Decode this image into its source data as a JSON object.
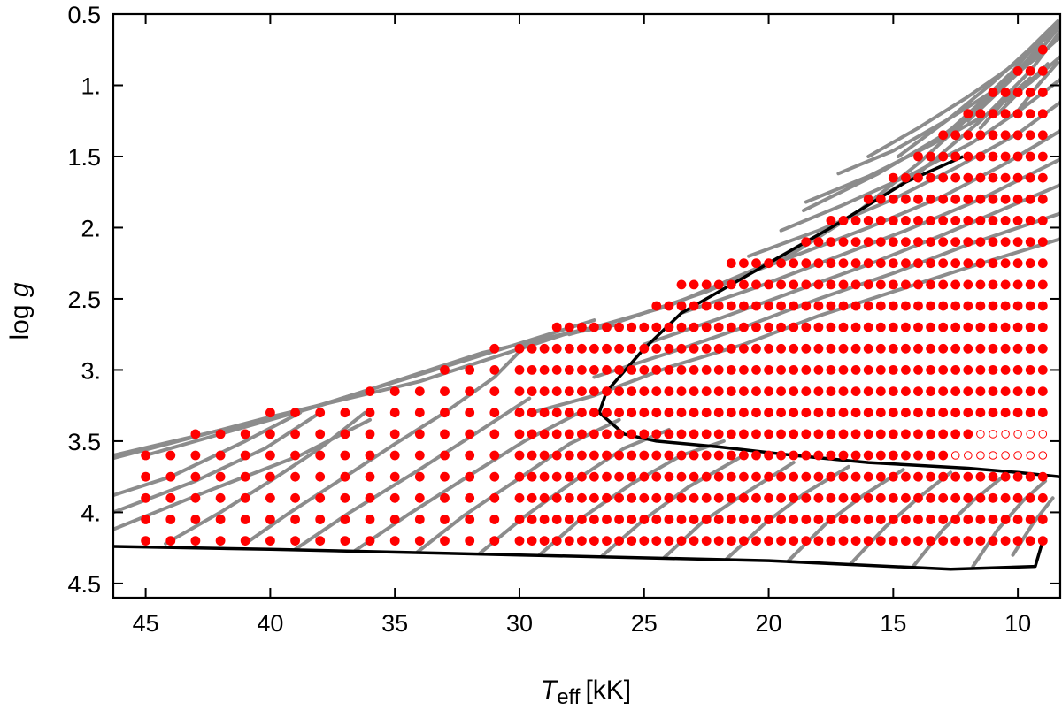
{
  "chart_data": {
    "type": "scatter",
    "title": "",
    "xlabel": {
      "symbol": "T",
      "subscript": "eff",
      "unit": "[kK]"
    },
    "ylabel": {
      "text": "log ",
      "symbol": "g"
    },
    "xlim": [
      46.3,
      8.3
    ],
    "ylim": [
      4.6,
      0.5
    ],
    "xticks": [
      45,
      40,
      35,
      30,
      25,
      20,
      15,
      10
    ],
    "xtick_labels": [
      "45",
      "40",
      "35",
      "30",
      "25",
      "20",
      "15",
      "10"
    ],
    "yticks": [
      0.5,
      1.0,
      1.5,
      2.0,
      2.5,
      3.0,
      3.5,
      4.0,
      4.5
    ],
    "ytick_labels": [
      "0.5",
      "1.",
      "1.5",
      "2.",
      "2.5",
      "3.",
      "3.5",
      "4.",
      "4.5"
    ],
    "grid": false,
    "colors": {
      "grid_point": "#ff0000",
      "track": "#8c8c8c",
      "boundary": "#000000",
      "axis": "#000000"
    },
    "grid_rows": [
      {
        "logg": 0.75,
        "t_max": 9.0,
        "t_min": 9.0,
        "step": 0.5
      },
      {
        "logg": 0.9,
        "t_max": 10.0,
        "t_min": 9.0,
        "step": 0.5
      },
      {
        "logg": 1.05,
        "t_max": 11.0,
        "t_min": 9.0,
        "step": 0.5
      },
      {
        "logg": 1.2,
        "t_max": 12.0,
        "t_min": 9.0,
        "step": 0.5
      },
      {
        "logg": 1.35,
        "t_max": 13.0,
        "t_min": 9.0,
        "step": 0.5
      },
      {
        "logg": 1.5,
        "t_max": 14.0,
        "t_min": 9.0,
        "step": 0.5
      },
      {
        "logg": 1.65,
        "t_max": 15.0,
        "t_min": 9.0,
        "step": 0.5
      },
      {
        "logg": 1.8,
        "t_max": 16.0,
        "t_min": 9.0,
        "step": 0.5
      },
      {
        "logg": 1.95,
        "t_max": 17.5,
        "t_min": 9.0,
        "step": 0.5
      },
      {
        "logg": 2.1,
        "t_max": 18.5,
        "t_min": 9.0,
        "step": 0.5
      },
      {
        "logg": 2.25,
        "t_max": 21.5,
        "t_min": 9.0,
        "step": 0.5
      },
      {
        "logg": 2.4,
        "t_max": 23.5,
        "t_min": 9.0,
        "step": 0.5
      },
      {
        "logg": 2.55,
        "t_max": 24.5,
        "t_min": 9.0,
        "step": 0.5
      },
      {
        "logg": 2.7,
        "t_max": 28.5,
        "t_min": 9.0,
        "step": 0.5
      },
      {
        "logg": 2.85,
        "t_max": 31.0,
        "t_min": 9.0,
        "step_hot": 1.0,
        "step": 0.5
      },
      {
        "logg": 3.0,
        "t_max": 33.0,
        "t_min": 9.0,
        "step_hot": 1.0,
        "step": 0.5
      },
      {
        "logg": 3.15,
        "t_max": 36.0,
        "t_min": 9.0,
        "step_hot": 1.0,
        "step": 0.5
      },
      {
        "logg": 3.3,
        "t_max": 40.0,
        "t_min": 9.0,
        "step_hot": 1.0,
        "step": 0.5
      },
      {
        "logg": 3.45,
        "t_max": 43.0,
        "t_min": 9.0,
        "step_hot": 1.0,
        "step": 0.5,
        "open_below": 11.5
      },
      {
        "logg": 3.6,
        "t_max": 45.0,
        "t_min": 9.0,
        "step_hot": 1.0,
        "step": 0.5,
        "open_below": 12.5
      },
      {
        "logg": 3.75,
        "t_max": 45.0,
        "t_min": 9.0,
        "step_hot": 1.0,
        "step": 0.5
      },
      {
        "logg": 3.9,
        "t_max": 45.0,
        "t_min": 9.0,
        "step_hot": 1.0,
        "step": 0.5
      },
      {
        "logg": 4.05,
        "t_max": 45.0,
        "t_min": 9.0,
        "step_hot": 1.0,
        "step": 0.5
      },
      {
        "logg": 4.2,
        "t_max": 45.0,
        "t_min": 9.0,
        "step_hot": 1.0,
        "step": 0.5
      }
    ],
    "hot_step_threshold": 30,
    "zams": [
      [
        46.3,
        4.24
      ],
      [
        40,
        4.26
      ],
      [
        30,
        4.3
      ],
      [
        20,
        4.34
      ],
      [
        12.7,
        4.4
      ],
      [
        9.3,
        4.38
      ],
      [
        9.0,
        4.2
      ]
    ],
    "tams": [
      [
        12.2,
        1.5
      ],
      [
        14.5,
        1.68
      ],
      [
        17.5,
        2.0
      ],
      [
        19.5,
        2.2
      ],
      [
        21.5,
        2.4
      ],
      [
        23.5,
        2.6
      ],
      [
        25.0,
        2.85
      ],
      [
        26.5,
        3.15
      ],
      [
        26.8,
        3.3
      ],
      [
        25.8,
        3.45
      ],
      [
        24.5,
        3.5
      ],
      [
        22.0,
        3.54
      ],
      [
        19.0,
        3.6
      ],
      [
        16.0,
        3.65
      ],
      [
        12.0,
        3.69
      ],
      [
        10.0,
        3.72
      ],
      [
        8.3,
        3.75
      ]
    ],
    "tracks": [
      [
        [
          46.3,
          4.12
        ],
        [
          42.5,
          3.85
        ],
        [
          38.8,
          3.6
        ],
        [
          36.0,
          3.35
        ]
      ],
      [
        [
          46.3,
          4.0
        ],
        [
          43.0,
          3.78
        ],
        [
          40.2,
          3.55
        ],
        [
          38.0,
          3.3
        ]
      ],
      [
        [
          46.3,
          3.88
        ],
        [
          44.0,
          3.75
        ],
        [
          41.0,
          3.5
        ],
        [
          38.8,
          3.3
        ]
      ],
      [
        [
          46.3,
          3.62
        ],
        [
          40.0,
          3.33
        ],
        [
          34.0,
          3.08
        ],
        [
          28.2,
          2.75
        ],
        [
          26.0,
          2.68
        ]
      ],
      [
        [
          46.3,
          3.6
        ],
        [
          39.0,
          3.3
        ],
        [
          32.5,
          2.95
        ],
        [
          27.0,
          2.65
        ]
      ],
      [
        [
          45.0,
          3.6
        ],
        [
          38.0,
          3.25
        ],
        [
          31.5,
          2.88
        ],
        [
          27.0,
          2.7
        ]
      ],
      [
        [
          44.2,
          4.22
        ],
        [
          42.0,
          4.0
        ],
        [
          40.0,
          3.78
        ],
        [
          38.0,
          3.55
        ],
        [
          36.2,
          3.3
        ]
      ],
      [
        [
          41.0,
          4.22
        ],
        [
          39.2,
          4.0
        ],
        [
          37.0,
          3.75
        ],
        [
          35.0,
          3.52
        ],
        [
          33.0,
          3.3
        ],
        [
          31.0,
          3.05
        ],
        [
          29.6,
          2.8
        ]
      ],
      [
        [
          39.0,
          4.26
        ],
        [
          36.8,
          4.0
        ],
        [
          34.2,
          3.72
        ],
        [
          31.8,
          3.45
        ],
        [
          29.6,
          3.2
        ]
      ],
      [
        [
          36.6,
          4.27
        ],
        [
          34.5,
          4.02
        ],
        [
          32.0,
          3.74
        ],
        [
          29.8,
          3.5
        ],
        [
          27.6,
          3.3
        ]
      ],
      [
        [
          34.1,
          4.28
        ],
        [
          32.2,
          4.02
        ],
        [
          30.0,
          3.76
        ],
        [
          28.0,
          3.52
        ],
        [
          26.0,
          3.35
        ]
      ],
      [
        [
          31.6,
          4.29
        ],
        [
          29.8,
          4.03
        ],
        [
          27.8,
          3.78
        ],
        [
          25.8,
          3.55
        ],
        [
          24.0,
          3.42
        ]
      ],
      [
        [
          29.2,
          4.3
        ],
        [
          27.5,
          4.04
        ],
        [
          25.5,
          3.8
        ],
        [
          23.5,
          3.6
        ],
        [
          21.8,
          3.5
        ]
      ],
      [
        [
          26.7,
          4.31
        ],
        [
          25.0,
          4.05
        ],
        [
          23.2,
          3.82
        ],
        [
          21.2,
          3.62
        ]
      ],
      [
        [
          24.2,
          4.32
        ],
        [
          22.6,
          4.06
        ],
        [
          20.8,
          3.85
        ],
        [
          19.0,
          3.65
        ]
      ],
      [
        [
          21.7,
          4.33
        ],
        [
          20.1,
          4.07
        ],
        [
          18.5,
          3.86
        ],
        [
          16.8,
          3.68
        ]
      ],
      [
        [
          19.2,
          4.34
        ],
        [
          17.7,
          4.08
        ],
        [
          16.2,
          3.88
        ],
        [
          14.6,
          3.7
        ]
      ],
      [
        [
          16.7,
          4.36
        ],
        [
          15.3,
          4.1
        ],
        [
          14.0,
          3.9
        ],
        [
          12.7,
          3.72
        ]
      ],
      [
        [
          14.2,
          4.38
        ],
        [
          13.0,
          4.12
        ],
        [
          11.8,
          3.92
        ],
        [
          10.6,
          3.75
        ]
      ],
      [
        [
          11.8,
          4.38
        ],
        [
          10.8,
          4.12
        ],
        [
          9.8,
          3.92
        ],
        [
          8.9,
          3.78
        ]
      ],
      [
        [
          10.2,
          4.3
        ],
        [
          9.4,
          4.08
        ],
        [
          8.6,
          3.9
        ]
      ],
      [
        [
          29.5,
          3.3
        ],
        [
          27.0,
          3.18
        ],
        [
          24.0,
          2.98
        ],
        [
          21.0,
          2.82
        ],
        [
          18.0,
          2.62
        ],
        [
          15.0,
          2.45
        ],
        [
          12.0,
          2.28
        ],
        [
          8.3,
          2.08
        ]
      ],
      [
        [
          27.0,
          3.05
        ],
        [
          24.0,
          2.88
        ],
        [
          21.0,
          2.7
        ],
        [
          18.0,
          2.5
        ],
        [
          15.0,
          2.32
        ],
        [
          12.0,
          2.12
        ],
        [
          8.3,
          1.9
        ]
      ],
      [
        [
          25.0,
          2.82
        ],
        [
          22.0,
          2.64
        ],
        [
          19.0,
          2.45
        ],
        [
          16.0,
          2.26
        ],
        [
          13.0,
          2.05
        ],
        [
          8.3,
          1.7
        ]
      ],
      [
        [
          23.5,
          2.6
        ],
        [
          20.5,
          2.42
        ],
        [
          17.5,
          2.22
        ],
        [
          14.5,
          2.02
        ],
        [
          11.5,
          1.8
        ],
        [
          8.3,
          1.52
        ]
      ],
      [
        [
          22.0,
          2.4
        ],
        [
          19.0,
          2.2
        ],
        [
          16.0,
          2.0
        ],
        [
          13.0,
          1.78
        ],
        [
          10.5,
          1.55
        ],
        [
          8.3,
          1.32
        ]
      ],
      [
        [
          20.8,
          2.2
        ],
        [
          18.0,
          2.02
        ],
        [
          15.0,
          1.8
        ],
        [
          12.5,
          1.58
        ],
        [
          10.0,
          1.34
        ],
        [
          8.3,
          1.12
        ]
      ],
      [
        [
          19.5,
          2.02
        ],
        [
          17.0,
          1.84
        ],
        [
          14.2,
          1.62
        ],
        [
          11.8,
          1.4
        ],
        [
          9.8,
          1.16
        ],
        [
          8.3,
          0.96
        ]
      ],
      [
        [
          18.5,
          1.82
        ],
        [
          16.0,
          1.64
        ],
        [
          13.5,
          1.42
        ],
        [
          11.2,
          1.2
        ],
        [
          9.5,
          0.98
        ],
        [
          8.3,
          0.8
        ]
      ],
      [
        [
          17.2,
          1.62
        ],
        [
          15.0,
          1.46
        ],
        [
          12.8,
          1.24
        ],
        [
          10.8,
          1.02
        ],
        [
          9.2,
          0.8
        ],
        [
          8.3,
          0.66
        ]
      ],
      [
        [
          16.0,
          1.5
        ],
        [
          14.0,
          1.3
        ],
        [
          12.0,
          1.08
        ],
        [
          10.2,
          0.86
        ],
        [
          8.8,
          0.66
        ],
        [
          8.3,
          0.55
        ]
      ],
      [
        [
          28.0,
          2.75
        ],
        [
          24.0,
          2.55
        ],
        [
          20.0,
          2.25
        ],
        [
          17.0,
          1.95
        ],
        [
          14.0,
          1.62
        ],
        [
          11.5,
          1.25
        ],
        [
          9.5,
          0.9
        ],
        [
          8.3,
          0.62
        ]
      ],
      [
        [
          18.6,
          1.88
        ],
        [
          15.6,
          1.62
        ],
        [
          13.0,
          1.35
        ],
        [
          11.0,
          1.08
        ],
        [
          9.3,
          0.8
        ],
        [
          8.3,
          0.58
        ]
      ],
      [
        [
          26.0,
          2.66
        ],
        [
          22.5,
          2.45
        ],
        [
          19.2,
          2.2
        ],
        [
          16.5,
          1.9
        ],
        [
          14.0,
          1.55
        ],
        [
          11.5,
          1.15
        ],
        [
          9.0,
          0.72
        ]
      ],
      [
        [
          14.8,
          1.5
        ],
        [
          12.8,
          1.24
        ],
        [
          11.0,
          0.98
        ],
        [
          9.5,
          0.74
        ],
        [
          8.4,
          0.55
        ]
      ],
      [
        [
          13.0,
          1.36
        ],
        [
          11.5,
          1.12
        ],
        [
          10.2,
          0.9
        ],
        [
          9.0,
          0.66
        ]
      ],
      [
        [
          12.0,
          1.25
        ],
        [
          10.8,
          1.05
        ],
        [
          9.6,
          0.82
        ],
        [
          8.6,
          0.6
        ]
      ],
      [
        [
          11.5,
          1.3
        ],
        [
          10.5,
          1.1
        ],
        [
          9.5,
          0.95
        ]
      ],
      [
        [
          10.8,
          1.2
        ],
        [
          9.8,
          1.02
        ],
        [
          8.8,
          0.85
        ]
      ],
      [
        [
          10.0,
          1.18
        ],
        [
          9.2,
          1.0
        ],
        [
          8.4,
          0.84
        ]
      ]
    ]
  }
}
